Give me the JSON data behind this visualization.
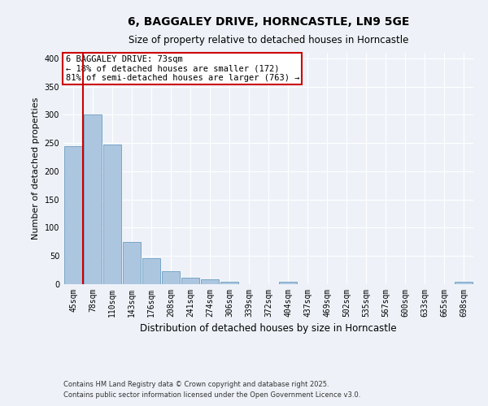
{
  "title": "6, BAGGALEY DRIVE, HORNCASTLE, LN9 5GE",
  "subtitle": "Size of property relative to detached houses in Horncastle",
  "xlabel": "Distribution of detached houses by size in Horncastle",
  "ylabel": "Number of detached properties",
  "footnote1": "Contains HM Land Registry data © Crown copyright and database right 2025.",
  "footnote2": "Contains public sector information licensed under the Open Government Licence v3.0.",
  "annotation_line1": "6 BAGGALEY DRIVE: 73sqm",
  "annotation_line2": "← 18% of detached houses are smaller (172)",
  "annotation_line3": "81% of semi-detached houses are larger (763) →",
  "bar_labels": [
    "45sqm",
    "78sqm",
    "110sqm",
    "143sqm",
    "176sqm",
    "208sqm",
    "241sqm",
    "274sqm",
    "306sqm",
    "339sqm",
    "372sqm",
    "404sqm",
    "437sqm",
    "469sqm",
    "502sqm",
    "535sqm",
    "567sqm",
    "600sqm",
    "633sqm",
    "665sqm",
    "698sqm"
  ],
  "bar_values": [
    245,
    300,
    247,
    75,
    46,
    23,
    11,
    8,
    5,
    0,
    0,
    4,
    0,
    0,
    0,
    0,
    0,
    0,
    0,
    0,
    4
  ],
  "bar_color": "#adc6e0",
  "bar_edge_color": "#6a9ec0",
  "vline_x_index": 1,
  "vline_color": "#cc0000",
  "ylim": [
    0,
    410
  ],
  "yticks": [
    0,
    50,
    100,
    150,
    200,
    250,
    300,
    350,
    400
  ],
  "bg_color": "#eef2f8",
  "grid_color": "#ffffff",
  "annotation_box_color": "#ffffff",
  "annotation_border_color": "#cc0000",
  "title_fontsize": 10,
  "subtitle_fontsize": 8.5,
  "ylabel_fontsize": 8,
  "xlabel_fontsize": 8.5,
  "tick_fontsize": 7,
  "ann_fontsize": 7.5,
  "footnote_fontsize": 6
}
